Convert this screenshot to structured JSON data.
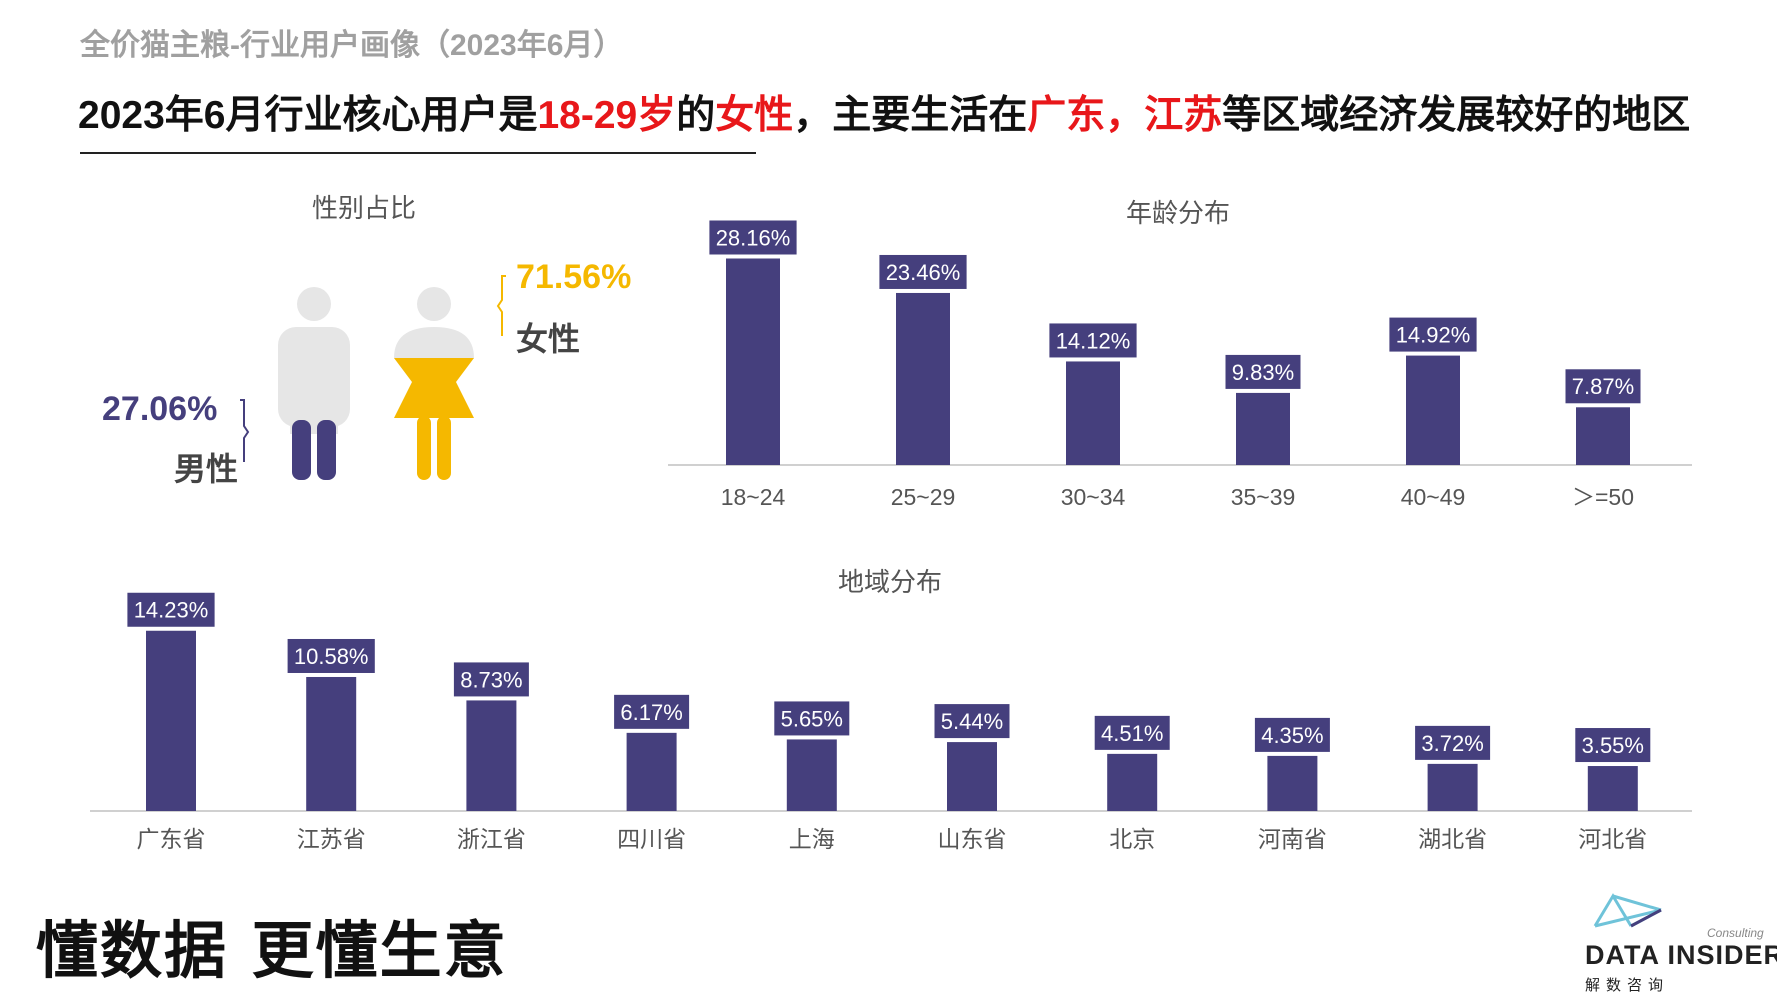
{
  "header": {
    "subtitle": "全价猫主粮-行业用户画像（2023年6月）",
    "headline_parts": [
      {
        "text": "2023年6月行业核心用户是",
        "highlight": false
      },
      {
        "text": "18-29岁",
        "highlight": true
      },
      {
        "text": "的",
        "highlight": false
      },
      {
        "text": "女性",
        "highlight": true
      },
      {
        "text": "，主要生活在",
        "highlight": false
      },
      {
        "text": "广东，江苏",
        "highlight": true
      },
      {
        "text": "等区域经济发展较好的地区",
        "highlight": false
      }
    ]
  },
  "gender": {
    "title": "性别占比",
    "female_pct": "71.56%",
    "female_label": "女性",
    "male_pct": "27.06%",
    "male_label": "男性"
  },
  "chart_data": [
    {
      "type": "pie",
      "title": "性别占比",
      "categories": [
        "女性",
        "男性"
      ],
      "values": [
        71.56,
        27.06
      ],
      "colors": [
        "#f5b800",
        "#453f7d"
      ]
    },
    {
      "type": "bar",
      "title": "年龄分布",
      "categories": [
        "18~24",
        "25~29",
        "30~34",
        "35~39",
        "40~49",
        "＞=50"
      ],
      "values": [
        28.16,
        23.46,
        14.12,
        9.83,
        14.92,
        7.87
      ],
      "labels": [
        "28.16%",
        "23.46%",
        "14.12%",
        "9.83%",
        "14.92%",
        "7.87%"
      ],
      "ylim": [
        0,
        30
      ],
      "color": "#453f7d"
    },
    {
      "type": "bar",
      "title": "地域分布",
      "categories": [
        "广东省",
        "江苏省",
        "浙江省",
        "四川省",
        "上海",
        "山东省",
        "北京",
        "河南省",
        "湖北省",
        "河北省"
      ],
      "values": [
        14.23,
        10.58,
        8.73,
        6.17,
        5.65,
        5.44,
        4.51,
        4.35,
        3.72,
        3.55
      ],
      "labels": [
        "14.23%",
        "10.58%",
        "8.73%",
        "6.17%",
        "5.65%",
        "5.44%",
        "4.51%",
        "4.35%",
        "3.72%",
        "3.55%"
      ],
      "ylim": [
        0,
        15
      ],
      "color": "#453f7d"
    }
  ],
  "footer": {
    "slogan": "懂数据 更懂生意",
    "logo_text": "DATA INSIDER",
    "logo_sub": "Consulting",
    "logo_cn": "解数咨询"
  },
  "colors": {
    "bar": "#453f7d",
    "female": "#f5b800",
    "male": "#453f7d",
    "highlight": "#e8171a",
    "figure_gray": "#e6e6e6"
  }
}
